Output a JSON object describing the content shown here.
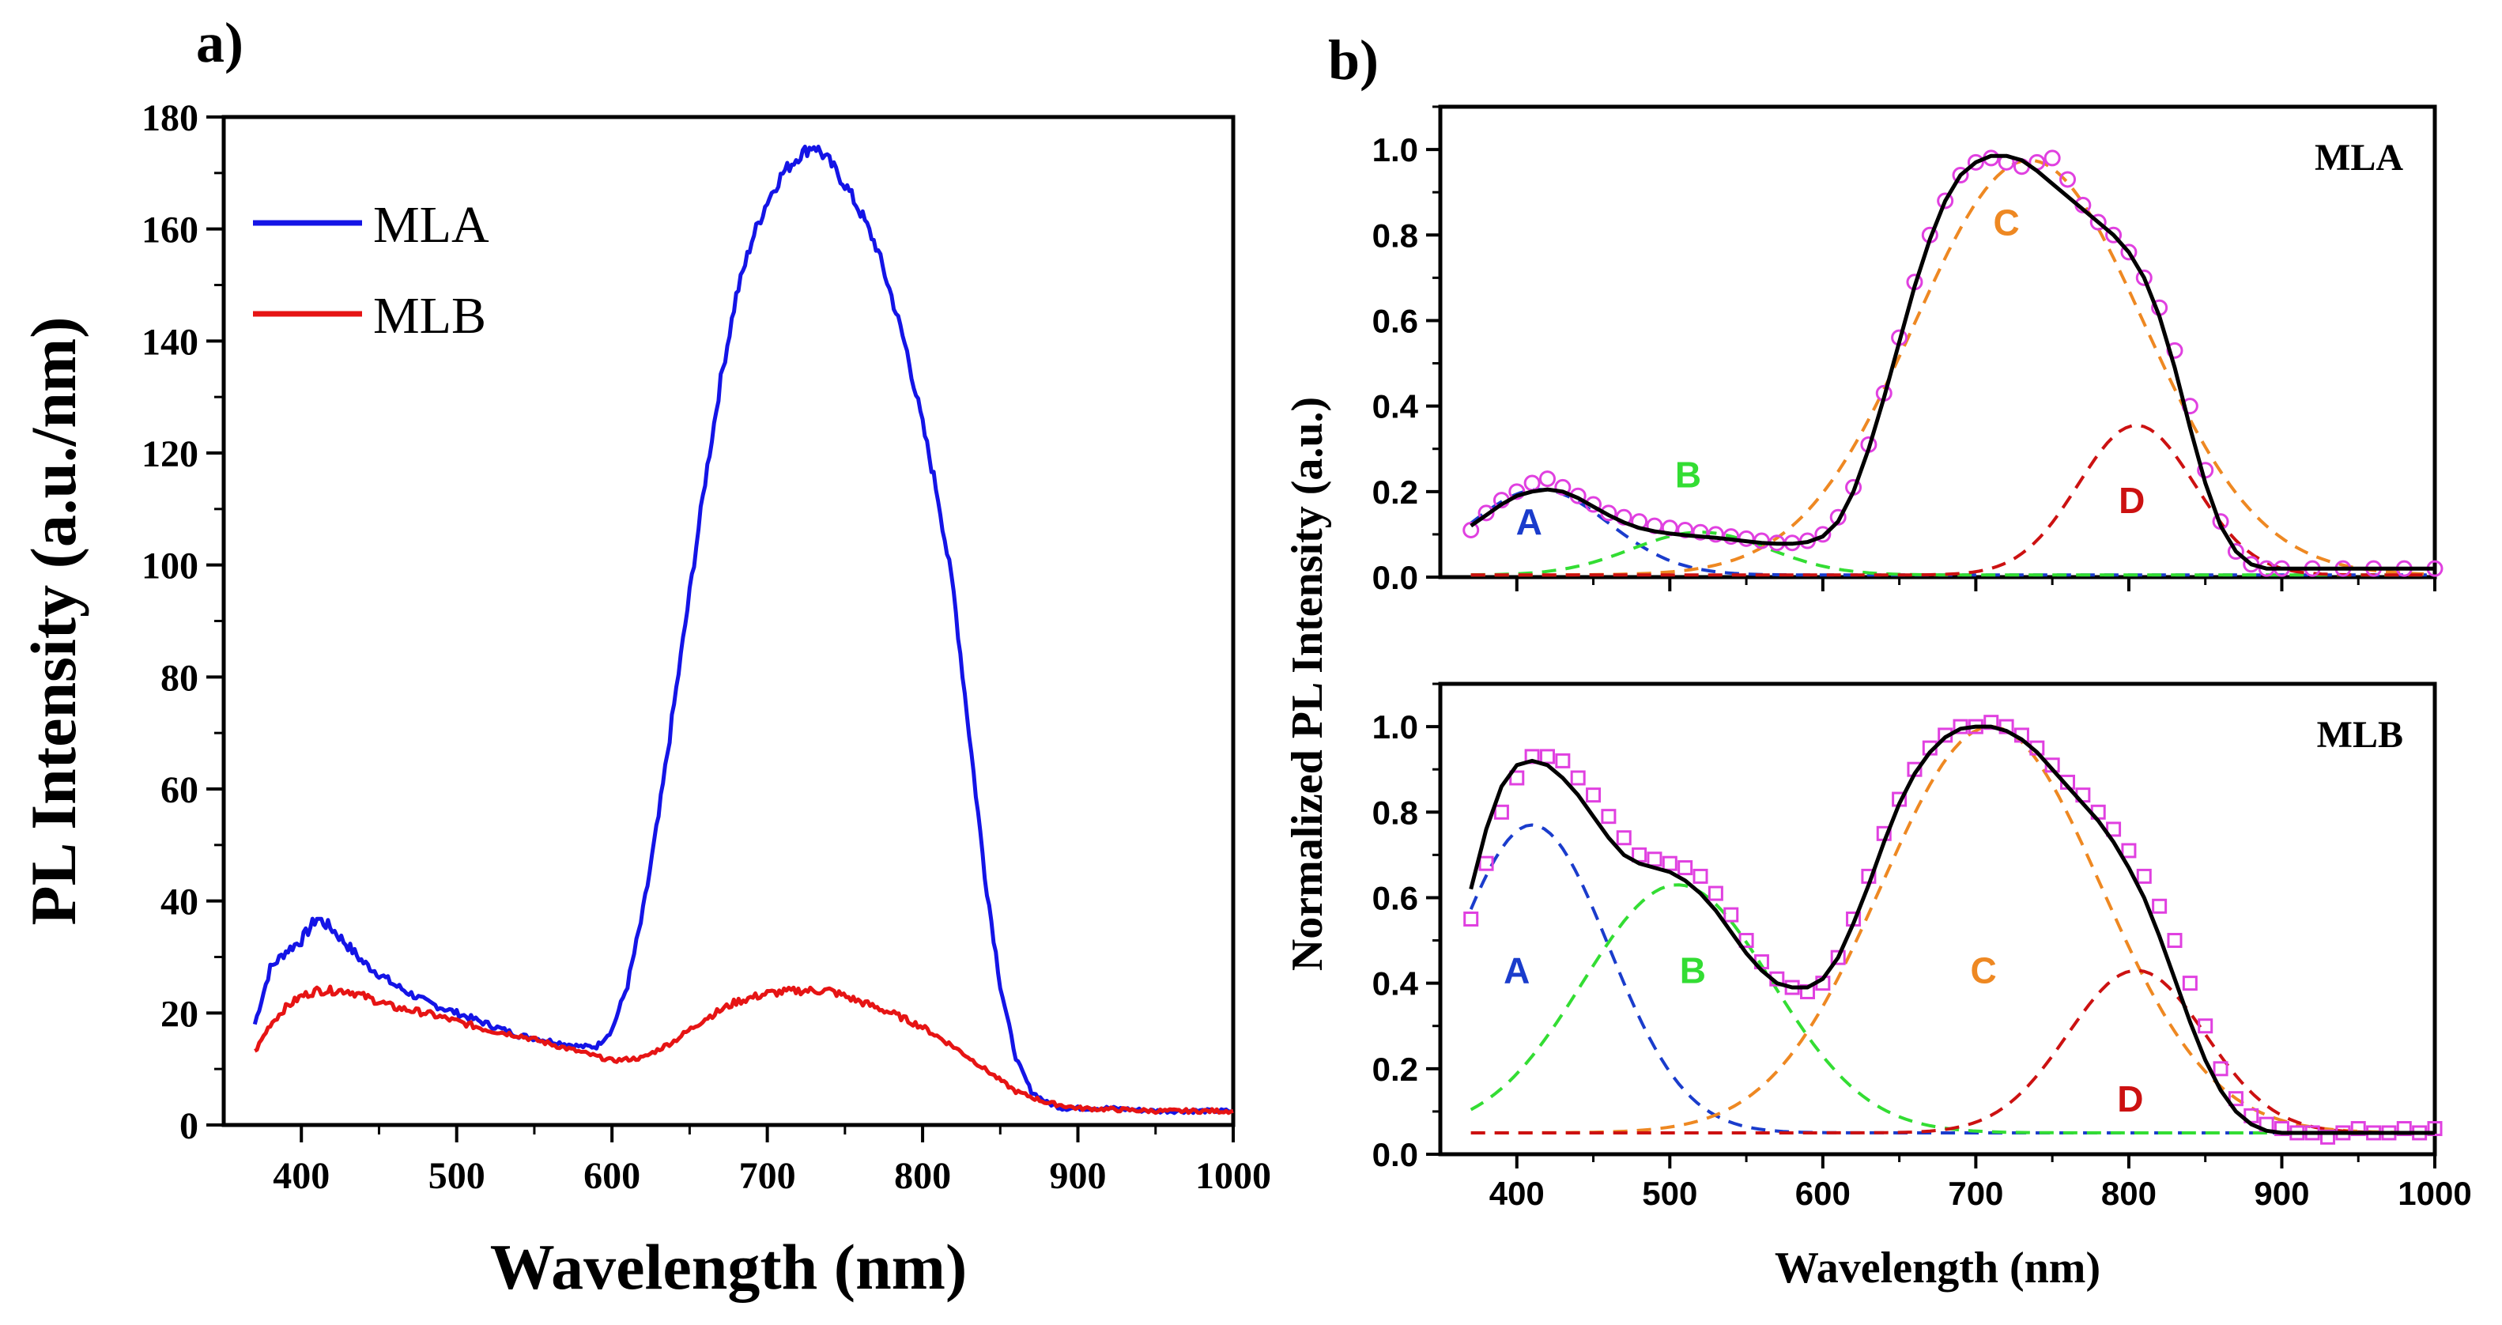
{
  "panel_labels": {
    "a": "a)",
    "b": "b)"
  },
  "colors": {
    "mla": "#1414e6",
    "mlb": "#e61414",
    "marker": "#e040e0",
    "fit": "#000000",
    "A": "#1a3ccc",
    "B": "#33dd33",
    "C": "#ee8822",
    "D": "#cc1111"
  },
  "chart_data": [
    {
      "id": "a",
      "type": "line",
      "title": "",
      "xlabel": "Wavelength (nm)",
      "ylabel": "PL Intensity (a.u./nm)",
      "xlim": [
        350,
        1000
      ],
      "ylim": [
        0,
        180
      ],
      "xticks": [
        "400",
        "500",
        "600",
        "700",
        "800",
        "900",
        "1000"
      ],
      "yticks": [
        "0",
        "20",
        "40",
        "60",
        "80",
        "100",
        "120",
        "140",
        "160",
        "180"
      ],
      "legend_position": "top-left",
      "series": [
        {
          "name": "MLA",
          "color_key": "mla",
          "x": [
            370,
            380,
            390,
            400,
            410,
            420,
            430,
            440,
            450,
            460,
            480,
            500,
            520,
            540,
            560,
            580,
            590,
            600,
            610,
            620,
            630,
            640,
            650,
            660,
            670,
            680,
            690,
            700,
            710,
            720,
            730,
            740,
            750,
            760,
            770,
            780,
            790,
            800,
            810,
            820,
            830,
            840,
            850,
            860,
            870,
            880,
            890,
            900,
            920,
            950,
            1000
          ],
          "y": [
            18,
            28,
            31,
            33,
            37,
            35,
            32,
            29,
            27,
            25,
            22,
            20,
            18,
            16,
            15,
            14,
            14,
            17,
            25,
            38,
            55,
            75,
            95,
            115,
            133,
            148,
            158,
            165,
            170,
            173,
            175,
            172,
            168,
            163,
            157,
            148,
            138,
            125,
            112,
            95,
            70,
            45,
            25,
            12,
            6,
            4,
            3,
            3,
            3,
            2.5,
            2.5
          ]
        },
        {
          "name": "MLB",
          "color_key": "mlb",
          "x": [
            370,
            380,
            390,
            400,
            410,
            420,
            430,
            440,
            450,
            460,
            480,
            500,
            520,
            540,
            560,
            580,
            600,
            620,
            640,
            660,
            680,
            700,
            720,
            740,
            760,
            780,
            800,
            820,
            840,
            860,
            880,
            900,
            950,
            1000
          ],
          "y": [
            13,
            18,
            21,
            23,
            24,
            24,
            24,
            23,
            22,
            21,
            20,
            18.5,
            17,
            16,
            14.5,
            13,
            11.5,
            12,
            15,
            19,
            22,
            23.5,
            24,
            24,
            22,
            20,
            17.5,
            14,
            10,
            6,
            4,
            3,
            2.5,
            2.5
          ]
        }
      ]
    },
    {
      "id": "b-top",
      "type": "scatter",
      "sample_label": "MLA",
      "xlabel": "",
      "ylabel": "",
      "xlim": [
        350,
        1000
      ],
      "ylim": [
        0,
        1.1
      ],
      "xticks": [],
      "yticks": [
        "0.0",
        "0.2",
        "0.4",
        "0.6",
        "0.8",
        "1.0"
      ],
      "marker": "circle",
      "data_points": {
        "x": [
          370,
          380,
          390,
          400,
          410,
          420,
          430,
          440,
          450,
          460,
          470,
          480,
          490,
          500,
          510,
          520,
          530,
          540,
          550,
          560,
          570,
          580,
          590,
          600,
          610,
          620,
          630,
          640,
          650,
          660,
          670,
          680,
          690,
          700,
          710,
          720,
          730,
          740,
          750,
          760,
          770,
          780,
          790,
          800,
          810,
          820,
          830,
          840,
          850,
          860,
          870,
          880,
          890,
          900,
          920,
          940,
          960,
          980,
          1000
        ],
        "y": [
          0.11,
          0.15,
          0.18,
          0.2,
          0.22,
          0.23,
          0.21,
          0.19,
          0.17,
          0.15,
          0.14,
          0.13,
          0.12,
          0.115,
          0.11,
          0.105,
          0.1,
          0.095,
          0.09,
          0.085,
          0.08,
          0.08,
          0.085,
          0.1,
          0.14,
          0.21,
          0.31,
          0.43,
          0.56,
          0.69,
          0.8,
          0.88,
          0.94,
          0.97,
          0.98,
          0.97,
          0.96,
          0.97,
          0.98,
          0.93,
          0.87,
          0.83,
          0.8,
          0.76,
          0.7,
          0.63,
          0.53,
          0.4,
          0.25,
          0.13,
          0.06,
          0.03,
          0.02,
          0.02,
          0.02,
          0.02,
          0.02,
          0.02,
          0.02
        ]
      },
      "fit": {
        "x": [
          370,
          380,
          390,
          400,
          410,
          420,
          430,
          440,
          450,
          460,
          470,
          480,
          490,
          500,
          510,
          520,
          530,
          540,
          550,
          560,
          570,
          580,
          590,
          600,
          610,
          620,
          630,
          640,
          650,
          660,
          670,
          680,
          690,
          700,
          710,
          720,
          730,
          740,
          750,
          760,
          770,
          780,
          790,
          800,
          810,
          820,
          830,
          840,
          850,
          860,
          870,
          880,
          890,
          900,
          920,
          950,
          1000
        ],
        "y": [
          0.12,
          0.145,
          0.17,
          0.19,
          0.2,
          0.205,
          0.2,
          0.185,
          0.165,
          0.145,
          0.128,
          0.115,
          0.107,
          0.102,
          0.098,
          0.095,
          0.092,
          0.088,
          0.084,
          0.08,
          0.078,
          0.078,
          0.082,
          0.095,
          0.13,
          0.2,
          0.3,
          0.42,
          0.55,
          0.68,
          0.79,
          0.88,
          0.94,
          0.97,
          0.985,
          0.985,
          0.975,
          0.95,
          0.92,
          0.89,
          0.86,
          0.83,
          0.8,
          0.76,
          0.7,
          0.61,
          0.49,
          0.35,
          0.22,
          0.12,
          0.06,
          0.03,
          0.02,
          0.02,
          0.02,
          0.02,
          0.02
        ]
      },
      "components": [
        {
          "name": "A",
          "color_key": "A",
          "center": 415,
          "width": 45,
          "amp": 0.2,
          "label_pos": [
            408,
            0.1
          ]
        },
        {
          "name": "B",
          "color_key": "B",
          "center": 520,
          "width": 45,
          "amp": 0.1,
          "label_pos": [
            512,
            0.21
          ]
        },
        {
          "name": "C",
          "color_key": "C",
          "center": 735,
          "width": 75,
          "amp": 0.97,
          "label_pos": [
            720,
            0.8
          ]
        },
        {
          "name": "D",
          "color_key": "D",
          "center": 805,
          "width": 38,
          "amp": 0.35,
          "label_pos": [
            802,
            0.15
          ]
        }
      ]
    },
    {
      "id": "b-bottom",
      "type": "scatter",
      "sample_label": "MLB",
      "xlabel": "Wavelength (nm)",
      "ylabel": "",
      "xlim": [
        350,
        1000
      ],
      "ylim": [
        0,
        1.1
      ],
      "xticks": [
        "400",
        "500",
        "600",
        "700",
        "800",
        "900",
        "1000"
      ],
      "yticks": [
        "0.0",
        "0.2",
        "0.4",
        "0.6",
        "0.8",
        "1.0"
      ],
      "marker": "square",
      "data_points": {
        "x": [
          370,
          380,
          390,
          400,
          410,
          420,
          430,
          440,
          450,
          460,
          470,
          480,
          490,
          500,
          510,
          520,
          530,
          540,
          550,
          560,
          570,
          580,
          590,
          600,
          610,
          620,
          630,
          640,
          650,
          660,
          670,
          680,
          690,
          700,
          710,
          720,
          730,
          740,
          750,
          760,
          770,
          780,
          790,
          800,
          810,
          820,
          830,
          840,
          850,
          860,
          870,
          880,
          890,
          900,
          910,
          920,
          930,
          940,
          950,
          960,
          970,
          980,
          990,
          1000
        ],
        "y": [
          0.55,
          0.68,
          0.8,
          0.88,
          0.93,
          0.93,
          0.92,
          0.88,
          0.84,
          0.79,
          0.74,
          0.7,
          0.69,
          0.68,
          0.67,
          0.65,
          0.61,
          0.56,
          0.5,
          0.45,
          0.41,
          0.39,
          0.38,
          0.4,
          0.46,
          0.55,
          0.65,
          0.75,
          0.83,
          0.9,
          0.95,
          0.98,
          1.0,
          1.0,
          1.01,
          1.0,
          0.98,
          0.95,
          0.91,
          0.87,
          0.84,
          0.8,
          0.76,
          0.71,
          0.65,
          0.58,
          0.5,
          0.4,
          0.3,
          0.2,
          0.13,
          0.09,
          0.07,
          0.06,
          0.05,
          0.05,
          0.04,
          0.05,
          0.06,
          0.05,
          0.05,
          0.06,
          0.05,
          0.06
        ]
      },
      "fit": {
        "x": [
          370,
          380,
          390,
          400,
          410,
          420,
          430,
          440,
          450,
          460,
          470,
          480,
          490,
          500,
          510,
          520,
          530,
          540,
          550,
          560,
          570,
          580,
          590,
          600,
          610,
          620,
          630,
          640,
          650,
          660,
          670,
          680,
          690,
          700,
          710,
          720,
          730,
          740,
          750,
          760,
          770,
          780,
          790,
          800,
          810,
          820,
          830,
          840,
          850,
          860,
          870,
          880,
          890,
          900,
          920,
          950,
          1000
        ],
        "y": [
          0.62,
          0.76,
          0.86,
          0.91,
          0.92,
          0.91,
          0.88,
          0.84,
          0.79,
          0.74,
          0.7,
          0.68,
          0.67,
          0.66,
          0.64,
          0.61,
          0.57,
          0.52,
          0.47,
          0.43,
          0.4,
          0.39,
          0.39,
          0.41,
          0.46,
          0.54,
          0.63,
          0.73,
          0.82,
          0.89,
          0.94,
          0.975,
          0.995,
          1.0,
          1.0,
          0.99,
          0.97,
          0.94,
          0.9,
          0.86,
          0.82,
          0.78,
          0.73,
          0.67,
          0.6,
          0.51,
          0.41,
          0.31,
          0.22,
          0.15,
          0.1,
          0.07,
          0.055,
          0.05,
          0.05,
          0.05,
          0.05
        ]
      },
      "components": [
        {
          "name": "A",
          "color_key": "A",
          "center": 410,
          "width": 50,
          "amp": 0.72,
          "label_pos": [
            400,
            0.4
          ]
        },
        {
          "name": "B",
          "color_key": "B",
          "center": 505,
          "width": 62,
          "amp": 0.58,
          "label_pos": [
            515,
            0.4
          ]
        },
        {
          "name": "C",
          "color_key": "C",
          "center": 710,
          "width": 72,
          "amp": 0.95,
          "label_pos": [
            705,
            0.4
          ]
        },
        {
          "name": "D",
          "color_key": "D",
          "center": 805,
          "width": 45,
          "amp": 0.38,
          "label_pos": [
            801,
            0.1
          ]
        }
      ]
    }
  ],
  "panel_b_ylabel": "Normalized PL Intensity (a.u.)"
}
